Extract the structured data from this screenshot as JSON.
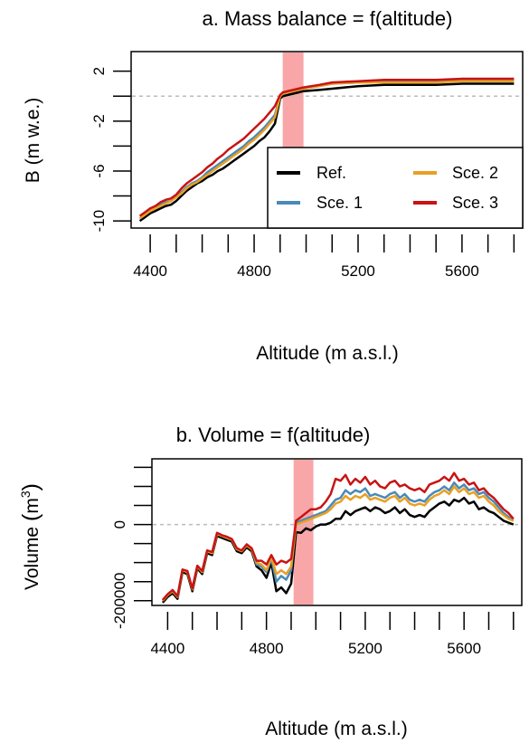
{
  "colors": {
    "ref": "#000000",
    "sce1": "#4a8ab8",
    "sce2": "#e8a024",
    "sce3": "#c81414",
    "band": "#f9a6a8",
    "zero_line": "#bbbbbb"
  },
  "chart_data": [
    {
      "type": "line",
      "title": "a. Mass balance = f(altitude)",
      "xlabel": "Altitude (m a.s.l.)",
      "ylabel": "B (m w.e.)",
      "xlim": [
        4330,
        5830
      ],
      "ylim": [
        -10.5,
        3.5
      ],
      "xticks": [
        4400,
        4500,
        4600,
        4700,
        4800,
        4900,
        5000,
        5100,
        5200,
        5300,
        5400,
        5500,
        5600,
        5700,
        5800
      ],
      "xtick_labels": [
        "4400",
        "",
        "4800",
        "",
        "5200",
        "",
        "5600"
      ],
      "xtick_label_values": [
        4400,
        4600,
        4800,
        5000,
        5200,
        5400,
        5600
      ],
      "yticks": [
        -10,
        -8,
        -6,
        -4,
        -2,
        0,
        2
      ],
      "ytick_labels": [
        "-10",
        "",
        "-6",
        "",
        "-2",
        "",
        "2"
      ],
      "zero_line": true,
      "band": [
        4910,
        4990
      ],
      "x": [
        4360,
        4380,
        4400,
        4420,
        4440,
        4460,
        4480,
        4500,
        4520,
        4540,
        4560,
        4580,
        4600,
        4620,
        4640,
        4660,
        4680,
        4700,
        4720,
        4740,
        4760,
        4780,
        4800,
        4820,
        4840,
        4860,
        4880,
        4900,
        4910,
        4930,
        4950,
        4970,
        4990,
        5050,
        5100,
        5200,
        5300,
        5400,
        5500,
        5600,
        5700,
        5800
      ],
      "legend": {
        "position": "bottom-right",
        "entries": [
          "Ref.",
          "Sce. 1",
          "Sce. 2",
          "Sce. 3"
        ]
      },
      "series": [
        {
          "name": "Ref.",
          "values": [
            -10.0,
            -9.7,
            -9.4,
            -9.2,
            -9.0,
            -8.8,
            -8.7,
            -8.4,
            -8.0,
            -7.6,
            -7.3,
            -7.0,
            -6.8,
            -6.5,
            -6.3,
            -6.0,
            -5.8,
            -5.5,
            -5.2,
            -4.9,
            -4.6,
            -4.3,
            -4.0,
            -3.6,
            -3.3,
            -2.8,
            -2.2,
            -0.2,
            0.0,
            0.1,
            0.2,
            0.3,
            0.4,
            0.5,
            0.6,
            0.8,
            0.9,
            0.9,
            0.9,
            1.0,
            1.0,
            1.0
          ]
        },
        {
          "name": "Sce. 1",
          "values": [
            -9.8,
            -9.5,
            -9.2,
            -9.0,
            -8.7,
            -8.5,
            -8.4,
            -8.1,
            -7.7,
            -7.3,
            -7.0,
            -6.8,
            -6.5,
            -6.1,
            -5.8,
            -5.5,
            -5.2,
            -4.9,
            -4.6,
            -4.3,
            -4.0,
            -3.6,
            -3.3,
            -2.9,
            -2.5,
            -2.0,
            -1.5,
            0.0,
            0.2,
            0.3,
            0.4,
            0.5,
            0.6,
            0.8,
            1.0,
            1.1,
            1.2,
            1.2,
            1.2,
            1.3,
            1.3,
            1.3
          ]
        },
        {
          "name": "Sce. 2",
          "values": [
            -9.8,
            -9.5,
            -9.2,
            -9.0,
            -8.8,
            -8.6,
            -8.4,
            -8.1,
            -7.8,
            -7.4,
            -7.1,
            -6.9,
            -6.6,
            -6.3,
            -6.0,
            -5.7,
            -5.4,
            -5.1,
            -4.8,
            -4.5,
            -4.2,
            -3.8,
            -3.5,
            -3.1,
            -2.7,
            -2.2,
            -1.7,
            0.0,
            0.2,
            0.3,
            0.4,
            0.5,
            0.6,
            0.8,
            1.0,
            1.1,
            1.1,
            1.1,
            1.1,
            1.2,
            1.2,
            1.2
          ]
        },
        {
          "name": "Sce. 3",
          "values": [
            -9.6,
            -9.3,
            -9.0,
            -8.8,
            -8.5,
            -8.3,
            -8.2,
            -7.9,
            -7.4,
            -7.0,
            -6.7,
            -6.4,
            -6.1,
            -5.7,
            -5.4,
            -5.0,
            -4.7,
            -4.3,
            -4.0,
            -3.7,
            -3.4,
            -3.0,
            -2.6,
            -2.2,
            -1.8,
            -1.3,
            -0.8,
            0.1,
            0.3,
            0.4,
            0.5,
            0.6,
            0.7,
            0.9,
            1.1,
            1.2,
            1.3,
            1.3,
            1.3,
            1.4,
            1.4,
            1.4
          ]
        }
      ]
    },
    {
      "type": "line",
      "title": "b. Volume = f(altitude)",
      "xlabel": "Altitude (m a.s.l.)",
      "ylabel_main": "Volume",
      "ylabel_unit": "m",
      "ylabel_exp": "3",
      "xlim": [
        4340,
        5830
      ],
      "ylim": [
        -210000,
        170000
      ],
      "xticks": [
        4400,
        4500,
        4600,
        4700,
        4800,
        4900,
        5000,
        5100,
        5200,
        5300,
        5400,
        5500,
        5600,
        5700,
        5800
      ],
      "xtick_labels": [
        "4400",
        "",
        "4800",
        "",
        "5200",
        "",
        "5600"
      ],
      "xtick_label_values": [
        4400,
        4600,
        4800,
        5000,
        5200,
        5400,
        5600
      ],
      "yticks": [
        -200000,
        -100000,
        0,
        100000
      ],
      "ytick_labels": [
        "-200000",
        "",
        "0",
        ""
      ],
      "ytick_marks": [
        -200000,
        -150000,
        -100000,
        -50000,
        0,
        50000,
        100000,
        150000
      ],
      "zero_line": true,
      "band": [
        4910,
        4990
      ],
      "x": [
        4380,
        4400,
        4420,
        4440,
        4460,
        4480,
        4500,
        4520,
        4540,
        4560,
        4580,
        4600,
        4620,
        4640,
        4660,
        4680,
        4700,
        4720,
        4740,
        4760,
        4780,
        4800,
        4820,
        4840,
        4860,
        4880,
        4900,
        4920,
        4940,
        4960,
        4980,
        5000,
        5020,
        5040,
        5060,
        5080,
        5100,
        5120,
        5140,
        5160,
        5180,
        5200,
        5220,
        5240,
        5260,
        5280,
        5300,
        5320,
        5340,
        5360,
        5380,
        5400,
        5420,
        5440,
        5460,
        5480,
        5500,
        5520,
        5540,
        5560,
        5580,
        5600,
        5620,
        5640,
        5660,
        5680,
        5700,
        5720,
        5740,
        5760,
        5780,
        5800
      ],
      "series": [
        {
          "name": "Ref.",
          "values": [
            -205000,
            -190000,
            -180000,
            -195000,
            -125000,
            -130000,
            -175000,
            -115000,
            -130000,
            -75000,
            -80000,
            -30000,
            -35000,
            -40000,
            -45000,
            -70000,
            -75000,
            -60000,
            -70000,
            -110000,
            -120000,
            -140000,
            -100000,
            -175000,
            -165000,
            -180000,
            -155000,
            -20000,
            -22000,
            -10000,
            -15000,
            -5000,
            0,
            0,
            5000,
            15000,
            15000,
            35000,
            25000,
            35000,
            40000,
            45000,
            35000,
            45000,
            40000,
            30000,
            35000,
            45000,
            30000,
            40000,
            25000,
            20000,
            25000,
            20000,
            35000,
            45000,
            55000,
            60000,
            50000,
            65000,
            60000,
            70000,
            55000,
            60000,
            40000,
            45000,
            35000,
            30000,
            20000,
            10000,
            5000,
            0
          ]
        },
        {
          "name": "Sce. 1",
          "values": [
            -200000,
            -185000,
            -175000,
            -190000,
            -120000,
            -125000,
            -170000,
            -110000,
            -125000,
            -70000,
            -75000,
            -25000,
            -30000,
            -35000,
            -40000,
            -65000,
            -70000,
            -55000,
            -65000,
            -105000,
            -110000,
            -125000,
            -90000,
            -150000,
            -135000,
            -145000,
            -120000,
            5000,
            10000,
            15000,
            20000,
            25000,
            30000,
            35000,
            50000,
            65000,
            70000,
            90000,
            80000,
            90000,
            85000,
            95000,
            75000,
            80000,
            75000,
            70000,
            80000,
            85000,
            70000,
            80000,
            65000,
            60000,
            65000,
            60000,
            75000,
            85000,
            90000,
            100000,
            90000,
            110000,
            95000,
            105000,
            90000,
            95000,
            80000,
            85000,
            70000,
            60000,
            45000,
            30000,
            20000,
            10000
          ]
        },
        {
          "name": "Sce. 2",
          "values": [
            -200000,
            -185000,
            -175000,
            -190000,
            -120000,
            -125000,
            -170000,
            -110000,
            -125000,
            -70000,
            -75000,
            -25000,
            -30000,
            -35000,
            -40000,
            -65000,
            -70000,
            -55000,
            -65000,
            -100000,
            -105000,
            -120000,
            -85000,
            -130000,
            -120000,
            -130000,
            -110000,
            0,
            5000,
            10000,
            15000,
            20000,
            25000,
            30000,
            40000,
            55000,
            60000,
            75000,
            65000,
            75000,
            70000,
            80000,
            65000,
            70000,
            65000,
            60000,
            70000,
            75000,
            60000,
            70000,
            55000,
            50000,
            55000,
            50000,
            65000,
            75000,
            80000,
            90000,
            80000,
            100000,
            85000,
            95000,
            80000,
            85000,
            70000,
            75000,
            60000,
            50000,
            35000,
            25000,
            15000,
            10000
          ]
        },
        {
          "name": "Sce. 3",
          "values": [
            -198000,
            -183000,
            -172000,
            -188000,
            -118000,
            -122000,
            -168000,
            -108000,
            -122000,
            -68000,
            -72000,
            -22000,
            -28000,
            -32000,
            -38000,
            -62000,
            -68000,
            -52000,
            -62000,
            -95000,
            -95000,
            -105000,
            -80000,
            -105000,
            -95000,
            -100000,
            -90000,
            10000,
            20000,
            30000,
            40000,
            40000,
            45000,
            60000,
            80000,
            120000,
            115000,
            130000,
            105000,
            120000,
            110000,
            125000,
            105000,
            115000,
            100000,
            95000,
            110000,
            115000,
            100000,
            105000,
            95000,
            90000,
            95000,
            85000,
            105000,
            110000,
            115000,
            125000,
            115000,
            135000,
            115000,
            120000,
            105000,
            110000,
            90000,
            95000,
            80000,
            70000,
            55000,
            40000,
            30000,
            15000
          ]
        }
      ]
    }
  ]
}
